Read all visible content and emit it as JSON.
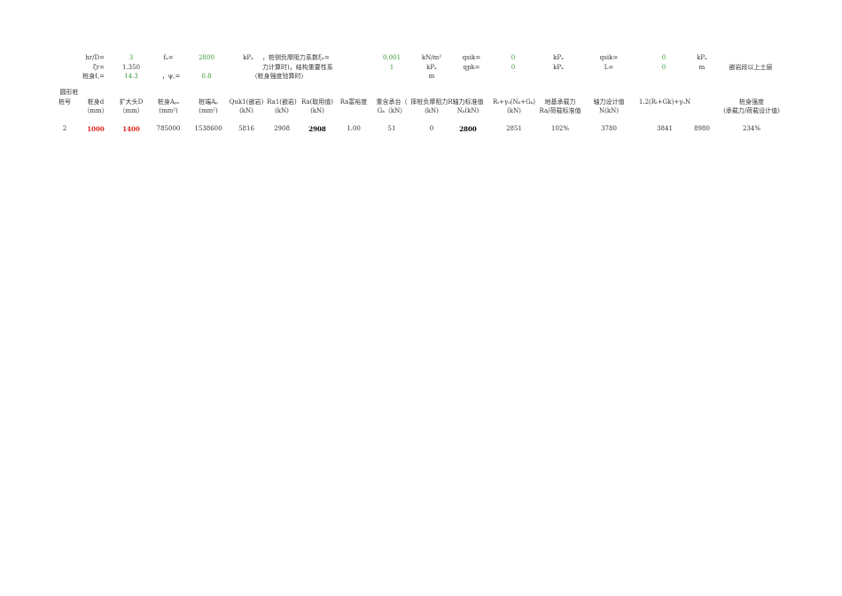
{
  "params": {
    "row1": {
      "hr_d_label": "hr/D=",
      "hr_d": "3",
      "fa_label": "fₐ=",
      "fa": "2800",
      "fa_unit": "kPₐ",
      "xi_label": "，桩侧负摩阻力系数ξₙ=",
      "xi": "0.001",
      "xi_unit": "kN/m²",
      "qsik1_label": "qsik=",
      "qsik1": "0",
      "qsik1_unit": "kPₐ",
      "qsik2_label": "qsik=",
      "qsik2": "0",
      "qsik2_unit": "kPₐ"
    },
    "row2": {
      "zeta_label": "ζr=",
      "zeta": "1.350",
      "struct_label": "力计算时)，结构重要性系",
      "struct": "1",
      "struct_unit": "kPₐ",
      "qpk_label": "qpk=",
      "qpk": "0",
      "qpk_unit": "kPₐ",
      "L_label": "L=",
      "L": "0",
      "L_unit": "m",
      "note": "嵌岩段以上土层"
    },
    "row3": {
      "fc_label": "桩身f꜀=",
      "fc": "14.3",
      "psi_label": "，ψ꜀=",
      "psi": "0.8",
      "psi_note": "（桩身强度验算时）",
      "unit_m": "m"
    }
  },
  "table": {
    "section_label": "圆形桩",
    "headers": [
      [
        "桩号",
        ""
      ],
      [
        "桩身d",
        "（mm）"
      ],
      [
        "扩大头D",
        "（mm）"
      ],
      [
        "桩身Aₚₛ",
        "(mm²)"
      ],
      [
        "桩端Aₚ",
        "(mm²)"
      ],
      [
        "Quk1(嵌岩)",
        "(kN)"
      ],
      [
        "Ra1(嵌岩)",
        "(kN)"
      ],
      [
        "Ra(取用值)",
        "(kN)"
      ],
      [
        "Ra富裕度",
        ""
      ],
      [
        "重含承台（",
        ""
      ],
      [
        "摔桩负摩阻力R",
        "(kN)"
      ],
      [
        "轴力标准值",
        "Nₖ(kN)"
      ],
      [
        "Rₜ+γₒ(Nₖ+Gₖ)",
        "(kN)"
      ],
      [
        "地基承载力",
        "Ra/荷载标准值"
      ],
      [
        "轴力设计值",
        "N(kN)"
      ],
      [
        "1.2(Rₜ+Gk)+γₒN",
        ""
      ],
      [
        "",
        ""
      ],
      [
        "桩身强度",
        "(承载力/荷载设计值)"
      ]
    ],
    "gk_sub": "Gₖ（kN）",
    "row": [
      "2",
      "1000",
      "1400",
      "785000",
      "1538600",
      "5816",
      "2908",
      "2908",
      "1.00",
      "51",
      "0",
      "2800",
      "2851",
      "102%",
      "3780",
      "3841",
      "8980",
      "234%"
    ]
  }
}
